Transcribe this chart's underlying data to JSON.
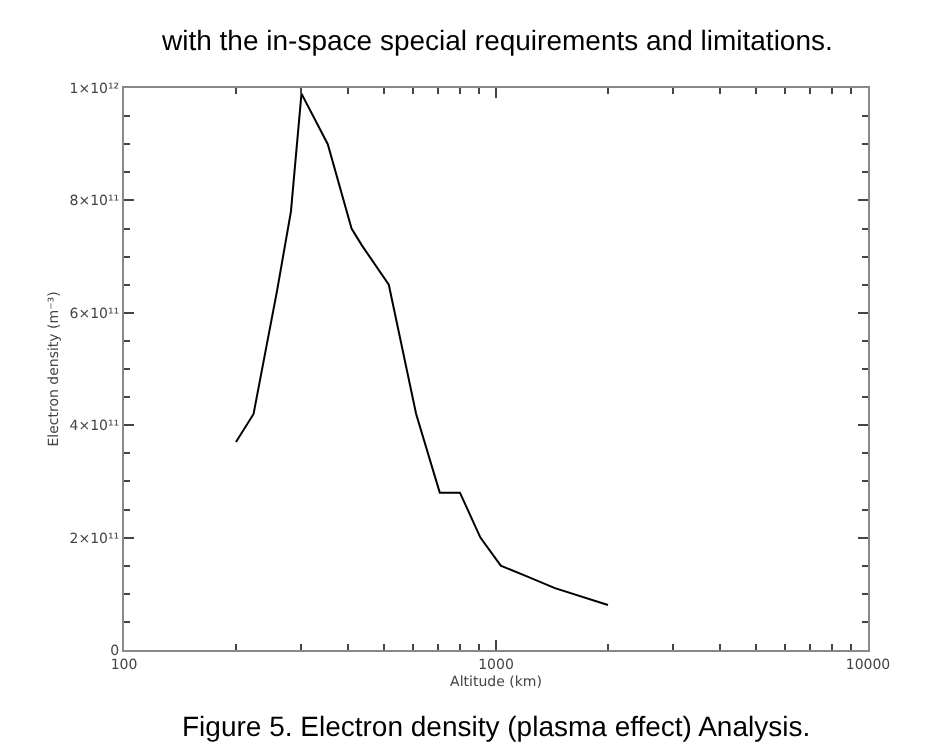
{
  "chart_data": {
    "type": "line",
    "xlabel": "Altitude (km)",
    "ylabel": "Electron density (m⁻³)",
    "annotations": [
      "with the in-space special requirements and limitations.",
      "Figure 5. Electron density (plasma effect) Analysis."
    ],
    "x": [
      200,
      223,
      258,
      281,
      300,
      353,
      409,
      436,
      515,
      610,
      706,
      800,
      908,
      1030,
      1220,
      1440,
      2000
    ],
    "series": [
      {
        "color": "#000000",
        "values": [
          370000000000.0,
          420000000000.0,
          640000000000.0,
          780000000000.0,
          990000000000.0,
          900000000000.0,
          750000000000.0,
          720000000000.0,
          650000000000.0,
          420000000000.0,
          280000000000.0,
          280000000000.0,
          200000000000.0,
          150000000000.0,
          130000000000.0,
          110000000000.0,
          80000000000.0
        ]
      }
    ],
    "log": "x",
    "xlim": [
      100,
      10000
    ],
    "xticks": [
      100,
      1000,
      10000
    ],
    "ylim": [
      0,
      1000000000000.0
    ],
    "yticks": [
      {
        "value": 0,
        "label": "0"
      },
      {
        "value": 200000000000.0,
        "label": "2×10¹¹"
      },
      {
        "value": 400000000000.0,
        "label": "4×10¹¹"
      },
      {
        "value": 600000000000.0,
        "label": "6×10¹¹"
      },
      {
        "value": 800000000000.0,
        "label": "8×10¹¹"
      },
      {
        "value": 1000000000000.0,
        "label": "1×10¹²"
      }
    ],
    "legend": false,
    "marker": "none",
    "line_style": "solid"
  }
}
